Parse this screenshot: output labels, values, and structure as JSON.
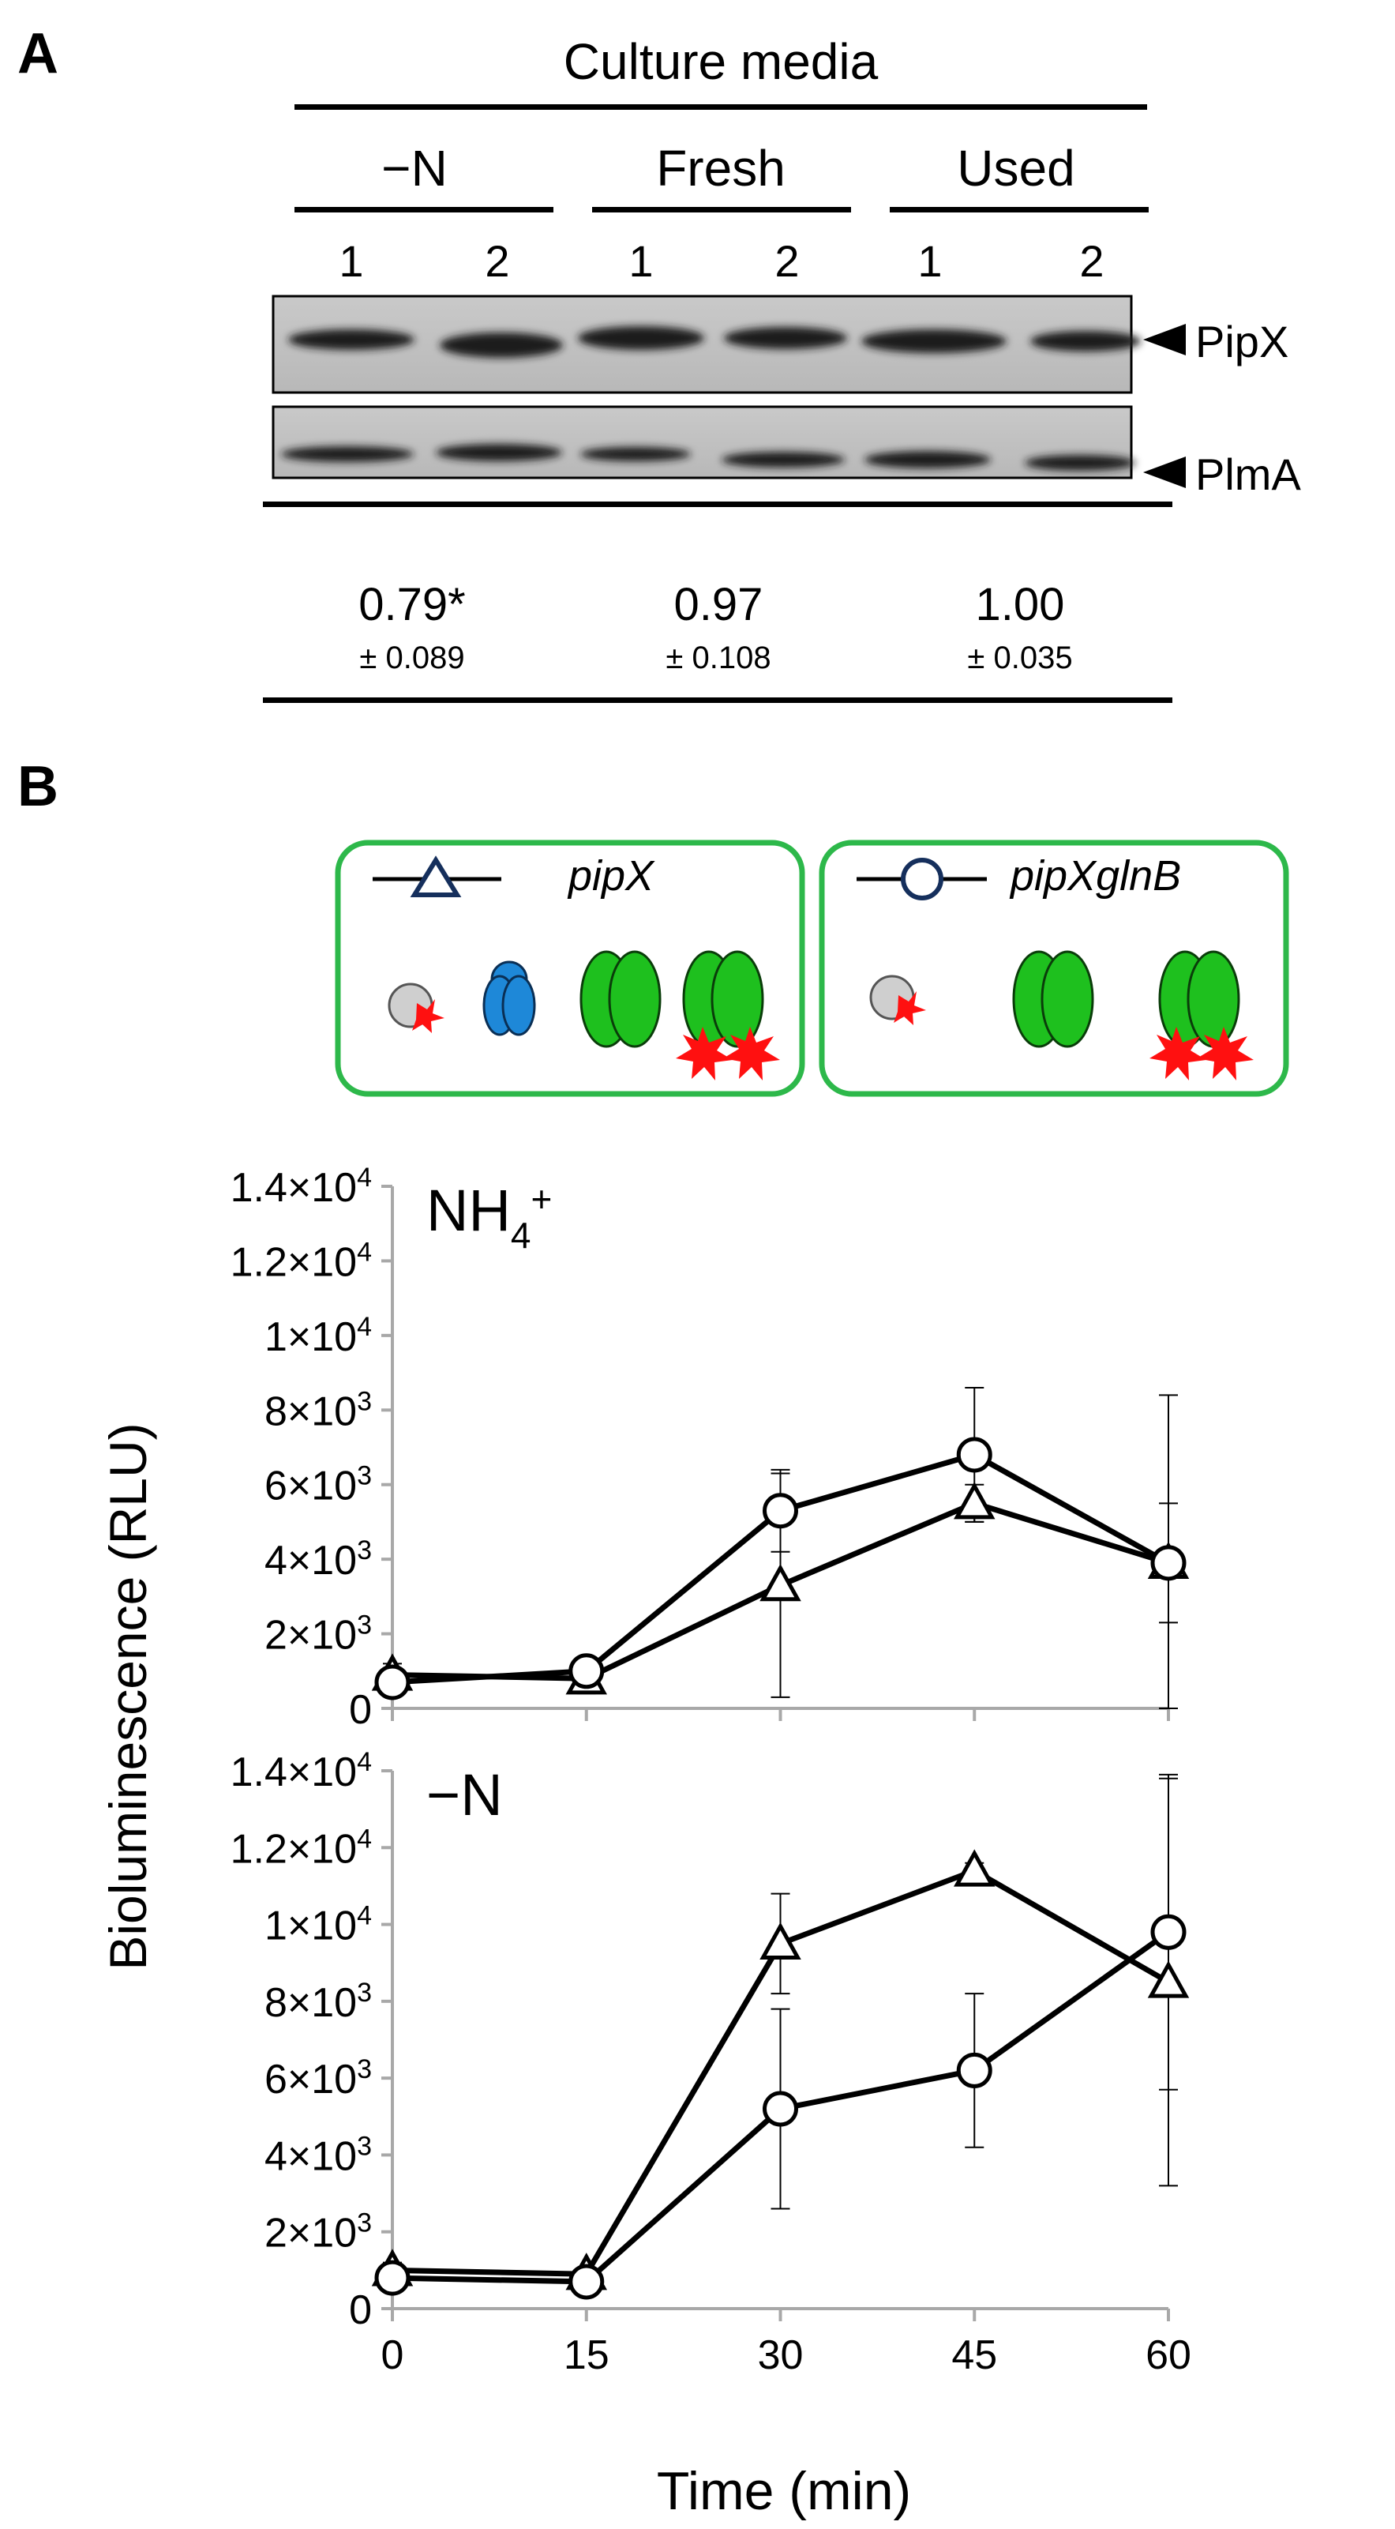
{
  "panel_a": {
    "letter": "A",
    "header": "Culture media",
    "groups": [
      {
        "label": "−N",
        "lanes": [
          "1",
          "2"
        ],
        "ratio": "0.79*",
        "sd": "± 0.089"
      },
      {
        "label": "Fresh",
        "lanes": [
          "1",
          "2"
        ],
        "ratio": "0.97",
        "sd": "± 0.108"
      },
      {
        "label": "Used",
        "lanes": [
          "1",
          "2"
        ],
        "ratio": "1.00",
        "sd": "± 0.035"
      }
    ],
    "blots": [
      {
        "label": "PipX",
        "arrow": "arrow-left-icon"
      },
      {
        "label": "PlmA",
        "arrow": "arrow-left-icon"
      }
    ]
  },
  "panel_b": {
    "letter": "B",
    "legend": [
      {
        "strain": "pipX",
        "marker": "triangle",
        "proteins": [
          "PipX-blue",
          "PII-green",
          "PII-red-star"
        ]
      },
      {
        "strain": "pipXglnB",
        "marker": "circle",
        "proteins": [
          "PII-green",
          "PII-red-star"
        ]
      }
    ],
    "colors": {
      "legend_border": "#2db84a",
      "pii_green": "#1ec01e",
      "pipx_blue": "#1e88d8",
      "star_red": "#ff1010",
      "line": "#000000"
    }
  },
  "chart_data": [
    {
      "type": "line",
      "title": "NH4+",
      "title_main": "NH",
      "title_sub": "4",
      "title_sup": "+",
      "xlabel": "Time (min)",
      "ylabel": "Bioluminescence (RLU)",
      "x": [
        0,
        15,
        30,
        45,
        60
      ],
      "ylim": [
        0,
        14000
      ],
      "yticks": [
        {
          "b": "0",
          "e": ""
        },
        {
          "b": "2×10",
          "e": "3"
        },
        {
          "b": "4×10",
          "e": "3"
        },
        {
          "b": "6×10",
          "e": "3"
        },
        {
          "b": "8×10",
          "e": "3"
        },
        {
          "b": "1×10",
          "e": "4"
        },
        {
          "b": "1.2×10",
          "e": "4"
        },
        {
          "b": "1.4×10",
          "e": "4"
        }
      ],
      "series": [
        {
          "name": "pipX",
          "marker": "triangle",
          "values": [
            900,
            800,
            3300,
            5500,
            3900
          ],
          "err": [
            300,
            400,
            3000,
            500,
            4500
          ]
        },
        {
          "name": "pipXglnB",
          "marker": "circle",
          "values": [
            700,
            1000,
            5300,
            6800,
            3900
          ],
          "err": [
            200,
            300,
            1100,
            1800,
            1600
          ]
        }
      ]
    },
    {
      "type": "line",
      "title": "−N",
      "xlabel": "Time (min)",
      "ylabel": "Bioluminescence (RLU)",
      "x": [
        0,
        15,
        30,
        45,
        60
      ],
      "xtick_labels": [
        "0",
        "15",
        "30",
        "45",
        "60"
      ],
      "ylim": [
        0,
        14000
      ],
      "yticks": [
        {
          "b": "0",
          "e": ""
        },
        {
          "b": "2×10",
          "e": "3"
        },
        {
          "b": "4×10",
          "e": "3"
        },
        {
          "b": "6×10",
          "e": "3"
        },
        {
          "b": "8×10",
          "e": "3"
        },
        {
          "b": "1×10",
          "e": "4"
        },
        {
          "b": "1.2×10",
          "e": "4"
        },
        {
          "b": "1.4×10",
          "e": "4"
        }
      ],
      "series": [
        {
          "name": "pipX",
          "marker": "triangle",
          "values": [
            1000,
            900,
            9500,
            11400,
            8500
          ],
          "err": [
            200,
            150,
            1300,
            200,
            5300
          ]
        },
        {
          "name": "pipXglnB",
          "marker": "circle",
          "values": [
            800,
            700,
            5200,
            6200,
            9800
          ],
          "err": [
            150,
            100,
            2600,
            2000,
            4100
          ]
        }
      ]
    }
  ]
}
